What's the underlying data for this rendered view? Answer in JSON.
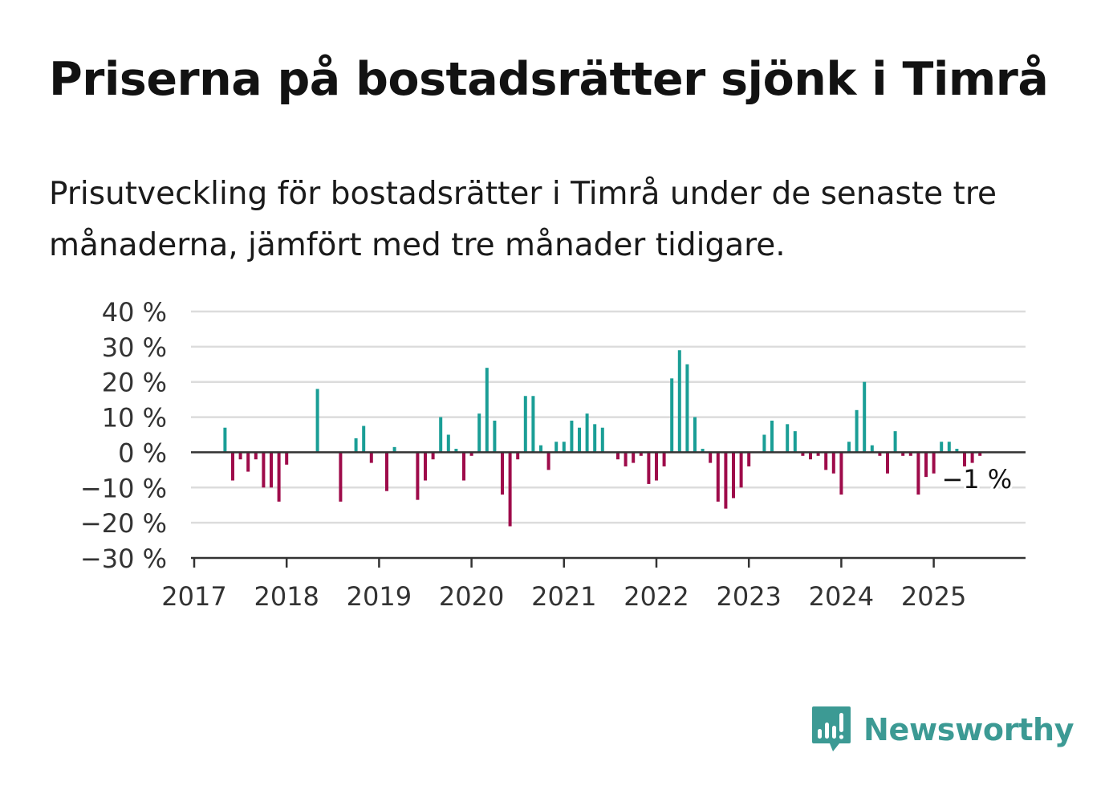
{
  "title": "Priserna på bostadsrätter sjönk i Timrå",
  "subtitle": "Prisutveckling för bostadsrätter i Timrå under de senaste tre månaderna, jämfört med tre månader tidigare.",
  "brand": {
    "name": "Newsworthy",
    "icon": "newsworthy-logo-icon",
    "color": "#3c9a94"
  },
  "colors": {
    "positive": "#1a9e96",
    "negative": "#9e0b4a",
    "grid": "#dcdcdc",
    "axis": "#333333"
  },
  "chart_data": {
    "type": "bar",
    "ylim": [
      -30,
      40
    ],
    "yticks": [
      "40 %",
      "30 %",
      "20 %",
      "10 %",
      "0 %",
      "−10 %",
      "−20 %",
      "−30 %"
    ],
    "ytick_values": [
      40,
      30,
      20,
      10,
      0,
      -10,
      -20,
      -30
    ],
    "xticks": [
      "2017",
      "2018",
      "2019",
      "2020",
      "2021",
      "2022",
      "2023",
      "2024",
      "2025"
    ],
    "x_start": "2017-01",
    "xlabel": "",
    "ylabel": "",
    "grid": true,
    "last_label": "−1 %",
    "series": [
      {
        "x": [
          "2017-05",
          "2017-06",
          "2017-07",
          "2017-08",
          "2017-09",
          "2017-10",
          "2017-11",
          "2017-12",
          "2018-01",
          "2018-02",
          "2018-03",
          "2018-04",
          "2018-05",
          "2018-06",
          "2018-07",
          "2018-08",
          "2018-09",
          "2018-10",
          "2018-11",
          "2018-12",
          "2019-01",
          "2019-02",
          "2019-03",
          "2019-04",
          "2019-05",
          "2019-06",
          "2019-07",
          "2019-08",
          "2019-09",
          "2019-10",
          "2019-11",
          "2019-12",
          "2020-01",
          "2020-02",
          "2020-03",
          "2020-04",
          "2020-05",
          "2020-06",
          "2020-07",
          "2020-08",
          "2020-09",
          "2020-10",
          "2020-11",
          "2020-12",
          "2021-01",
          "2021-02",
          "2021-03",
          "2021-04",
          "2021-05",
          "2021-06",
          "2021-07",
          "2021-08",
          "2021-09",
          "2021-10",
          "2021-11",
          "2021-12",
          "2022-01",
          "2022-02",
          "2022-03",
          "2022-04",
          "2022-05",
          "2022-06",
          "2022-07",
          "2022-08",
          "2022-09",
          "2022-10",
          "2022-11",
          "2022-12",
          "2023-01",
          "2023-02",
          "2023-03",
          "2023-04",
          "2023-05",
          "2023-06",
          "2023-07",
          "2023-08",
          "2023-09",
          "2023-10",
          "2023-11",
          "2023-12",
          "2024-01",
          "2024-02",
          "2024-03",
          "2024-04",
          "2024-05",
          "2024-06",
          "2024-07",
          "2024-08",
          "2024-09",
          "2024-10",
          "2024-11",
          "2024-12",
          "2025-01",
          "2025-02",
          "2025-03",
          "2025-04",
          "2025-05",
          "2025-06",
          "2025-07"
        ],
        "values": [
          7,
          -8,
          -2,
          -5.5,
          -2,
          -10,
          -10,
          -14,
          -3.5,
          0,
          0,
          0,
          18,
          0,
          0,
          -14,
          0,
          4,
          7.5,
          -3,
          0,
          -11,
          1.5,
          0,
          0,
          -13.5,
          -8,
          -2,
          10,
          5,
          1,
          -8,
          -1,
          11,
          24,
          9,
          -12,
          -21,
          -2,
          16,
          16,
          2,
          -5,
          3,
          3,
          9,
          7,
          11,
          8,
          7,
          0,
          -2,
          -4,
          -3,
          -1,
          -9,
          -8,
          -4,
          21,
          29,
          25,
          10,
          1,
          -3,
          -14,
          -16,
          -13,
          -10,
          -4,
          0,
          5,
          9,
          0,
          8,
          6,
          -1,
          -2,
          -1,
          -5,
          -6,
          -12,
          3,
          12,
          20,
          2,
          -1,
          -6,
          6,
          -1,
          -1,
          -12,
          -7,
          -6,
          3,
          3,
          1,
          -4,
          -3,
          -1
        ]
      }
    ]
  }
}
